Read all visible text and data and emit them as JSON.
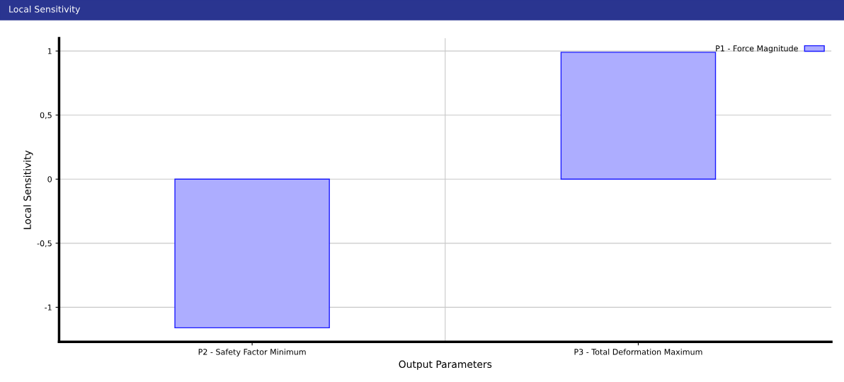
{
  "chart_data": {
    "type": "bar",
    "title": "Local Sensitivity",
    "xlabel": "Output Parameters",
    "ylabel": "Local Sensitivity",
    "categories": [
      "P2 - Safety Factor Minimum",
      "P3 - Total Deformation Maximum"
    ],
    "series": [
      {
        "name": "P1 - Force Magnitude",
        "color": "#adadff",
        "values": [
          -1.16,
          0.99
        ]
      }
    ],
    "ylim": [
      -1.27,
      1.1
    ],
    "yticks": [
      {
        "value": -1,
        "label": "-1"
      },
      {
        "value": -0.5,
        "label": "-0,5"
      },
      {
        "value": 0,
        "label": "0"
      },
      {
        "value": 0.5,
        "label": "0,5"
      },
      {
        "value": 1,
        "label": "1"
      }
    ],
    "grid": true,
    "legend": "top right"
  }
}
